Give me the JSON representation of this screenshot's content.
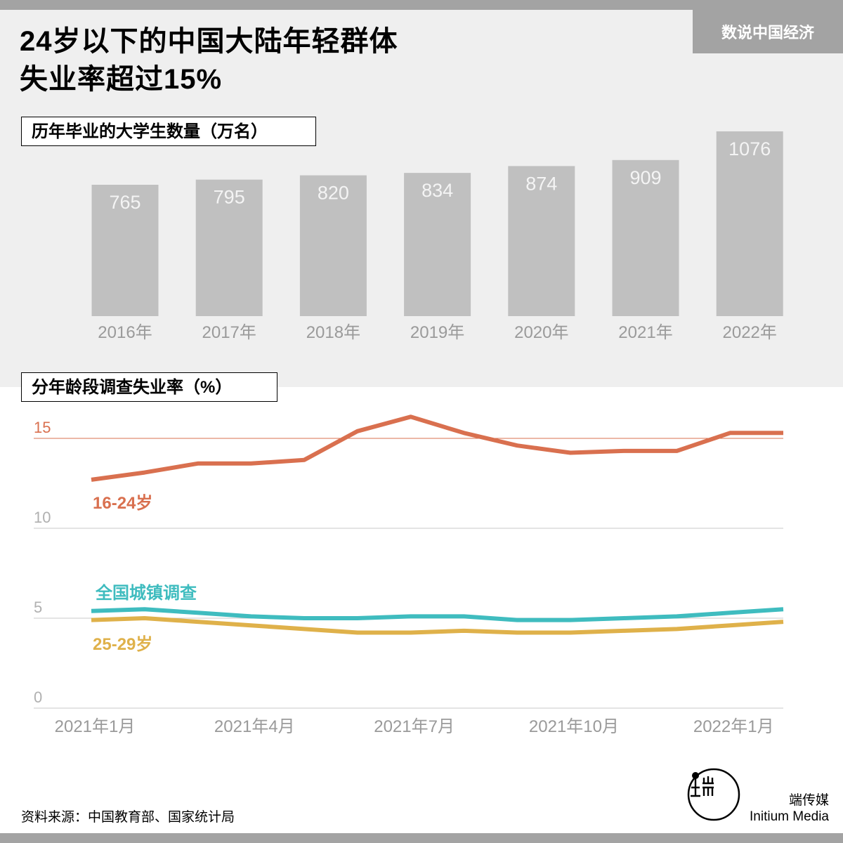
{
  "header": {
    "title_line1": "24岁以下的中国大陆年轻群体",
    "title_line2": "失业率超过15%",
    "brand_tag": "数说中国经济"
  },
  "bar_section_label": "历年毕业的大学生数量（万名）",
  "line_section_label": "分年龄段调查失业率（%）",
  "footer": {
    "source": "资料来源：中国教育部、国家统计局",
    "logo_name_zh": "端传媒",
    "logo_name_en": "Initium Media"
  },
  "colors": {
    "bar": "#c0c0c0",
    "bar_label": "#f4f4f4",
    "axis_text": "#9a9a9a",
    "youth": "#d9704f",
    "urban": "#3fbcbf",
    "age25_29": "#dfb14a"
  },
  "chart_data": [
    {
      "type": "bar",
      "title": "历年毕业的大学生数量（万名）",
      "categories": [
        "2016年",
        "2017年",
        "2018年",
        "2019年",
        "2020年",
        "2021年",
        "2022年"
      ],
      "values": [
        765,
        795,
        820,
        834,
        874,
        909,
        1076
      ],
      "grid": false
    },
    {
      "type": "line",
      "title": "分年龄段调查失业率（%）",
      "x": [
        "2021年1月",
        "2021年2月",
        "2021年3月",
        "2021年4月",
        "2021年5月",
        "2021年6月",
        "2021年7月",
        "2021年8月",
        "2021年9月",
        "2021年10月",
        "2021年11月",
        "2021年12月",
        "2022年1月",
        "2022年2月"
      ],
      "x_ticks": [
        "2021年1月",
        "2021年4月",
        "2021年7月",
        "2021年10月",
        "2022年1月"
      ],
      "y_ticks": [
        0,
        5,
        10,
        15
      ],
      "ylim": [
        0,
        16.5
      ],
      "reference_line": 15,
      "series": [
        {
          "name": "16-24岁",
          "color": "#d9704f",
          "values": [
            12.7,
            13.1,
            13.6,
            13.6,
            13.8,
            15.4,
            16.2,
            15.3,
            14.6,
            14.2,
            14.3,
            14.3,
            15.3,
            15.3
          ]
        },
        {
          "name": "全国城镇调查",
          "color": "#3fbcbf",
          "values": [
            5.4,
            5.5,
            5.3,
            5.1,
            5.0,
            5.0,
            5.1,
            5.1,
            4.9,
            4.9,
            5.0,
            5.1,
            5.3,
            5.5
          ]
        },
        {
          "name": "25-29岁",
          "color": "#dfb14a",
          "values": [
            4.9,
            5.0,
            4.8,
            4.6,
            4.4,
            4.2,
            4.2,
            4.3,
            4.2,
            4.2,
            4.3,
            4.4,
            4.6,
            4.8
          ]
        }
      ],
      "grid": true
    }
  ]
}
